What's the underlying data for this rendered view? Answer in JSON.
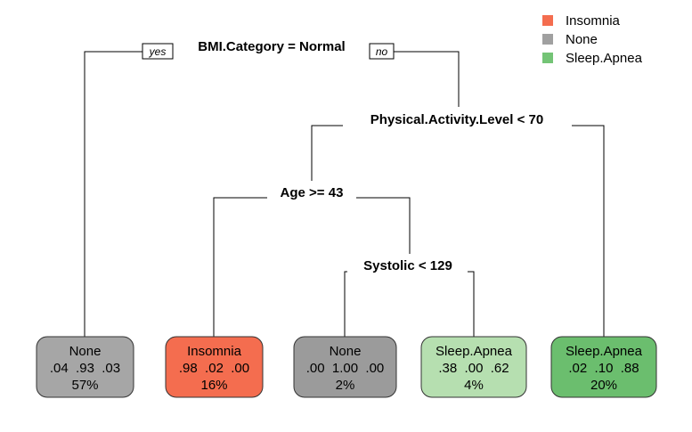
{
  "colors": {
    "Insomnia": "#F46D4F",
    "None": "#A0A0A0",
    "Sleep.Apnea": "#74C476",
    "leaf_fills": [
      "#A6A6A6",
      "#F46D4F",
      "#9B9B9B",
      "#B6DFB0",
      "#6BBE6E"
    ]
  },
  "legend": [
    {
      "label": "Insomnia",
      "color": "#F46D4F"
    },
    {
      "label": "None",
      "color": "#A0A0A0"
    },
    {
      "label": "Sleep.Apnea",
      "color": "#74C476"
    }
  ],
  "branch_labels": {
    "yes": "yes",
    "no": "no"
  },
  "splits": [
    {
      "id": "root",
      "label": "BMI.Category = Normal"
    },
    {
      "id": "activity",
      "label": "Physical.Activity.Level < 70"
    },
    {
      "id": "age",
      "label": "Age >= 43"
    },
    {
      "id": "systolic",
      "label": "Systolic < 129"
    }
  ],
  "leaves": [
    {
      "class": "None",
      "probs": ".04  .93  .03",
      "percent": "57%"
    },
    {
      "class": "Insomnia",
      "probs": ".98  .02  .00",
      "percent": "16%"
    },
    {
      "class": "None",
      "probs": ".00  1.00  .00",
      "percent": "2%"
    },
    {
      "class": "Sleep.Apnea",
      "probs": ".38  .00  .62",
      "percent": "4%"
    },
    {
      "class": "Sleep.Apnea",
      "probs": ".02  .10  .88",
      "percent": "20%"
    }
  ]
}
